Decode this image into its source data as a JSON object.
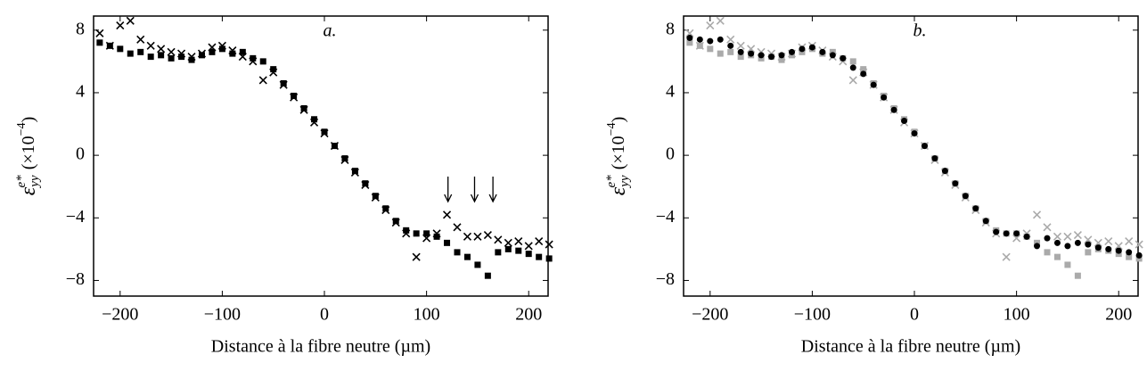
{
  "chart_data": [
    {
      "type": "scatter",
      "title": "a.",
      "xlabel": "Distance à la fibre neutre (µm)",
      "ylabel_symbol": "ε",
      "ylabel_superscript": "e*",
      "ylabel_subscript": "yy",
      "ylabel_unit": "(×10",
      "ylabel_exponent": "−4",
      "ylabel_close": ")",
      "xlim": [
        -226,
        219
      ],
      "ylim": [
        -9,
        8.9
      ],
      "xticks": [
        {
          "value": -200,
          "label": "−200"
        },
        {
          "value": -100,
          "label": "−100"
        },
        0,
        100,
        200
      ],
      "yticks": [
        {
          "value": -8,
          "label": "−8"
        },
        {
          "value": -4,
          "label": "−4"
        },
        0,
        4,
        8
      ],
      "x": [
        -220,
        -210,
        -200,
        -190,
        -180,
        -170,
        -160,
        -150,
        -140,
        -130,
        -120,
        -110,
        -100,
        -90,
        -80,
        -70,
        -60,
        -50,
        -40,
        -30,
        -20,
        -10,
        0,
        10,
        20,
        30,
        40,
        50,
        60,
        70,
        80,
        90,
        100,
        110,
        120,
        130,
        140,
        150,
        160,
        170,
        180,
        190,
        200,
        210,
        220
      ],
      "arrows_x": [
        121,
        147,
        165
      ],
      "series": [
        {
          "marker": "square",
          "color": "#000000",
          "values": [
            7.2,
            7.0,
            6.8,
            6.5,
            6.6,
            6.3,
            6.4,
            6.2,
            6.3,
            6.1,
            6.4,
            6.6,
            6.8,
            6.5,
            6.6,
            6.2,
            6.0,
            5.5,
            4.6,
            3.8,
            3.0,
            2.3,
            1.5,
            0.6,
            -0.2,
            -1.0,
            -1.8,
            -2.6,
            -3.4,
            -4.2,
            -4.8,
            -5.0,
            -5.0,
            -5.2,
            -5.6,
            -6.2,
            -6.5,
            -7.0,
            -7.7,
            -6.2,
            -6.0,
            -6.1,
            -6.3,
            -6.5,
            -6.6
          ]
        },
        {
          "marker": "x",
          "color": "#000000",
          "values": [
            7.8,
            7.0,
            8.3,
            8.6,
            7.4,
            7.0,
            6.8,
            6.6,
            6.5,
            6.3,
            6.5,
            6.9,
            7.0,
            6.7,
            6.3,
            6.0,
            4.8,
            5.3,
            4.5,
            3.7,
            2.9,
            2.1,
            1.4,
            0.6,
            -0.3,
            -1.1,
            -1.9,
            -2.7,
            -3.5,
            -4.3,
            -5.0,
            -6.5,
            -5.3,
            -5.0,
            -3.8,
            -4.6,
            -5.2,
            -5.2,
            -5.1,
            -5.4,
            -5.6,
            -5.5,
            -5.8,
            -5.5,
            -5.7
          ]
        }
      ]
    },
    {
      "type": "scatter",
      "title": "b.",
      "xlabel": "Distance à la fibre neutre (µm)",
      "ylabel_symbol": "ε",
      "ylabel_superscript": "e*",
      "ylabel_subscript": "yy",
      "ylabel_unit": "(×10",
      "ylabel_exponent": "−4",
      "ylabel_close": ")",
      "xlim": [
        -226,
        219
      ],
      "ylim": [
        -9,
        8.9
      ],
      "xticks": [
        {
          "value": -200,
          "label": "−200"
        },
        {
          "value": -100,
          "label": "−100"
        },
        0,
        100,
        200
      ],
      "yticks": [
        {
          "value": -8,
          "label": "−8"
        },
        {
          "value": -4,
          "label": "−4"
        },
        0,
        4,
        8
      ],
      "x": [
        -220,
        -210,
        -200,
        -190,
        -180,
        -170,
        -160,
        -150,
        -140,
        -130,
        -120,
        -110,
        -100,
        -90,
        -80,
        -70,
        -60,
        -50,
        -40,
        -30,
        -20,
        -10,
        0,
        10,
        20,
        30,
        40,
        50,
        60,
        70,
        80,
        90,
        100,
        110,
        120,
        130,
        140,
        150,
        160,
        170,
        180,
        190,
        200,
        210,
        220
      ],
      "series": [
        {
          "marker": "square",
          "color": "#aaaaaa",
          "values": [
            7.2,
            7.0,
            6.8,
            6.5,
            6.6,
            6.3,
            6.4,
            6.2,
            6.3,
            6.1,
            6.4,
            6.6,
            6.8,
            6.5,
            6.6,
            6.2,
            6.0,
            5.5,
            4.6,
            3.8,
            3.0,
            2.3,
            1.5,
            0.6,
            -0.2,
            -1.0,
            -1.8,
            -2.6,
            -3.4,
            -4.2,
            -4.8,
            -5.0,
            -5.0,
            -5.2,
            -5.6,
            -6.2,
            -6.5,
            -7.0,
            -7.7,
            -6.2,
            -6.0,
            -6.1,
            -6.3,
            -6.5,
            -6.6
          ]
        },
        {
          "marker": "x",
          "color": "#aaaaaa",
          "values": [
            7.8,
            7.0,
            8.3,
            8.6,
            7.4,
            7.0,
            6.8,
            6.6,
            6.5,
            6.3,
            6.5,
            6.9,
            7.0,
            6.7,
            6.3,
            6.0,
            4.8,
            5.3,
            4.5,
            3.7,
            2.9,
            2.1,
            1.4,
            0.6,
            -0.3,
            -1.1,
            -1.9,
            -2.7,
            -3.5,
            -4.3,
            -5.0,
            -6.5,
            -5.3,
            -5.0,
            -3.8,
            -4.6,
            -5.2,
            -5.2,
            -5.1,
            -5.4,
            -5.6,
            -5.5,
            -5.8,
            -5.5,
            -5.7
          ]
        },
        {
          "marker": "circle",
          "color": "#000000",
          "values": [
            7.5,
            7.4,
            7.3,
            7.4,
            7.0,
            6.6,
            6.5,
            6.4,
            6.3,
            6.4,
            6.6,
            6.8,
            6.9,
            6.6,
            6.4,
            6.2,
            5.6,
            5.2,
            4.5,
            3.7,
            2.9,
            2.2,
            1.4,
            0.6,
            -0.2,
            -1.0,
            -1.8,
            -2.6,
            -3.4,
            -4.2,
            -4.9,
            -5.0,
            -5.0,
            -5.2,
            -5.8,
            -5.3,
            -5.6,
            -5.8,
            -5.6,
            -5.7,
            -5.9,
            -6.0,
            -6.1,
            -6.2,
            -6.4
          ]
        }
      ]
    }
  ]
}
